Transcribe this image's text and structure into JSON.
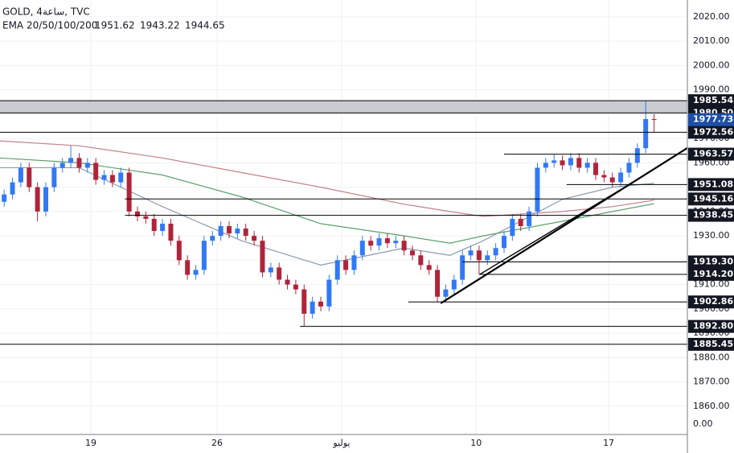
{
  "chart_data": {
    "type": "candlestick",
    "title": "GOLD, 4ساعة, TVC",
    "indicator_label": "EMA 20/50/100/200",
    "xlim": [
      0,
      165
    ],
    "ylim": [
      1848.4,
      2026.9
    ],
    "grid": true,
    "up_color": "#3179f5",
    "down_color": "#b0243a",
    "xticks": [
      {
        "value": 21.8,
        "label": "19"
      },
      {
        "value": 52.1,
        "label": "26"
      },
      {
        "value": 82,
        "label": "يوليو"
      },
      {
        "value": 114.3,
        "label": "10"
      },
      {
        "value": 146.1,
        "label": "17"
      }
    ],
    "yticks": [
      {
        "value": 2020,
        "label": "2020.00"
      },
      {
        "value": 2010,
        "label": "2010.00"
      },
      {
        "value": 2000,
        "label": "2000.00"
      },
      {
        "value": 1990,
        "label": "1990.00"
      },
      {
        "value": 1980,
        "label": "1980.00"
      },
      {
        "value": 1970,
        "label": "1970.00"
      },
      {
        "value": 1960,
        "label": "1960.00"
      },
      {
        "value": 1950,
        "label": "1950.00"
      },
      {
        "value": 1940,
        "label": "1940.00"
      },
      {
        "value": 1930,
        "label": "1930.00"
      },
      {
        "value": 1920,
        "label": "1920.00"
      },
      {
        "value": 1910,
        "label": "1910.00"
      },
      {
        "value": 1900,
        "label": "1900.00"
      },
      {
        "value": 1890,
        "label": "1890.00"
      },
      {
        "value": 1880,
        "label": "1880.00"
      },
      {
        "value": 1870,
        "label": "1870.00"
      },
      {
        "value": 1860,
        "label": "1860.00"
      }
    ],
    "bottom_label": "0.00",
    "x": [
      1,
      3,
      5,
      7,
      9,
      11,
      13,
      15,
      17,
      19,
      21,
      23,
      25,
      27,
      29,
      31,
      33,
      35,
      37,
      39,
      41,
      43,
      45,
      47,
      49,
      51,
      53,
      55,
      57,
      59,
      61,
      63,
      65,
      67,
      69,
      71,
      73,
      75,
      77,
      79,
      81,
      83,
      85,
      87,
      89,
      91,
      93,
      95,
      97,
      99,
      101,
      103,
      105,
      107,
      109,
      111,
      113,
      115,
      117,
      119,
      121,
      123,
      125,
      127,
      129,
      131,
      133,
      135,
      137,
      139,
      141,
      143,
      145,
      147,
      149,
      151,
      153,
      155,
      157
    ],
    "open": [
      1944,
      1947,
      1952,
      1958,
      1950,
      1940,
      1950,
      1958,
      1960,
      1962,
      1958,
      1960,
      1953,
      1955,
      1952,
      1956,
      1940,
      1938,
      1937,
      1932,
      1935,
      1928,
      1920,
      1914,
      1916,
      1928,
      1930,
      1934,
      1931,
      1933,
      1930,
      1928,
      1915,
      1917,
      1912,
      1910,
      1908,
      1898,
      1903,
      1901,
      1912,
      1920,
      1916,
      1922,
      1928,
      1926,
      1929,
      1927,
      1928,
      1924,
      1922,
      1918,
      1916,
      1905,
      1908,
      1912,
      1922,
      1924,
      1920,
      1922,
      1925,
      1930,
      1937,
      1934,
      1940,
      1958,
      1960,
      1961,
      1959,
      1962,
      1958,
      1960,
      1955,
      1954,
      1952,
      1956,
      1960,
      1966,
      1978
    ],
    "high": [
      1949,
      1954,
      1960,
      1960,
      1952,
      1952,
      1960,
      1962,
      1967,
      1964,
      1962,
      1962,
      1957,
      1957,
      1958,
      1958,
      1942,
      1940,
      1939,
      1937,
      1937,
      1930,
      1922,
      1918,
      1930,
      1932,
      1936,
      1936,
      1935,
      1935,
      1932,
      1930,
      1919,
      1919,
      1914,
      1912,
      1910,
      1905,
      1905,
      1914,
      1922,
      1922,
      1924,
      1930,
      1930,
      1931,
      1931,
      1930,
      1930,
      1926,
      1924,
      1920,
      1918,
      1910,
      1914,
      1924,
      1926,
      1926,
      1924,
      1927,
      1932,
      1939,
      1939,
      1942,
      1960,
      1962,
      1963.57,
      1963,
      1964,
      1964,
      1962,
      1962,
      1957,
      1956,
      1958,
      1962,
      1968,
      1985.54,
      1980
    ],
    "low": [
      1942,
      1945,
      1950,
      1948,
      1936,
      1938,
      1948,
      1956,
      1958,
      1956,
      1956,
      1951,
      1951,
      1950,
      1950,
      1938,
      1936,
      1935,
      1930,
      1930,
      1926,
      1918,
      1912,
      1912,
      1914,
      1926,
      1928,
      1929,
      1929,
      1928,
      1926,
      1913,
      1913,
      1910,
      1908,
      1906,
      1892.8,
      1896,
      1899,
      1899,
      1910,
      1914,
      1914,
      1920,
      1924,
      1924,
      1925,
      1925,
      1922,
      1920,
      1916,
      1914,
      1902.86,
      1903,
      1906,
      1910,
      1920,
      1914.2,
      1918,
      1920,
      1923,
      1928,
      1932,
      1932,
      1938,
      1956,
      1958,
      1957,
      1957,
      1956,
      1956,
      1953,
      1952,
      1950,
      1950,
      1954,
      1958,
      1964,
      1972.56
    ],
    "close": [
      1947,
      1952,
      1958,
      1950,
      1940,
      1950,
      1958,
      1960,
      1962,
      1958,
      1960,
      1953,
      1955,
      1952,
      1956,
      1940,
      1938,
      1937,
      1932,
      1935,
      1928,
      1920,
      1914,
      1916,
      1928,
      1930,
      1934,
      1931,
      1933,
      1930,
      1928,
      1915,
      1917,
      1912,
      1910,
      1908,
      1898,
      1903,
      1901,
      1912,
      1920,
      1916,
      1922,
      1928,
      1926,
      1929,
      1927,
      1928,
      1924,
      1922,
      1918,
      1916,
      1905,
      1908,
      1912,
      1922,
      1924,
      1920,
      1922,
      1925,
      1930,
      1937,
      1934,
      1940,
      1958,
      1960,
      1961,
      1959,
      1962,
      1958,
      1960,
      1955,
      1954,
      1952,
      1956,
      1960,
      1966,
      1978,
      1977.73
    ],
    "series": [
      {
        "name": "EMA 20",
        "color": "#8a9bb0",
        "x": [
          0,
          19,
          39,
          58,
          77,
          97,
          108,
          116,
          135,
          147,
          157
        ],
        "values": [
          1958,
          1958,
          1942,
          1928,
          1918,
          1925,
          1922,
          1928,
          1945,
          1950,
          1951.62
        ]
      },
      {
        "name": "EMA 50",
        "color": "#5f9e6b",
        "x": [
          0,
          19,
          39,
          58,
          77,
          97,
          108,
          116,
          135,
          147,
          157
        ],
        "values": [
          1962,
          1960,
          1955,
          1946,
          1935,
          1930,
          1927,
          1930,
          1936,
          1940,
          1943.22
        ]
      },
      {
        "name": "EMA 100",
        "color": "#c0828a",
        "x": [
          0,
          19,
          39,
          58,
          77,
          97,
          108,
          116,
          135,
          147,
          157
        ],
        "values": [
          1969,
          1967,
          1962,
          1956,
          1950,
          1943,
          1940,
          1938,
          1940,
          1942,
          1944.65
        ]
      }
    ],
    "legend_colors": [
      "#131722",
      "#2e7d32",
      "#b22833"
    ],
    "zone": [
      1985.54,
      {
        "value": 1980.5,
        "label": "1980.50"
      }
    ],
    "levels": [
      {
        "value": 1985.54,
        "from": 0
      },
      {
        "value": 1980.5,
        "label": "1980.50",
        "from": 0
      },
      {
        "value": 1972.56,
        "from": 0
      },
      {
        "value": 1963.57,
        "from": 121
      },
      {
        "value": 1951.08,
        "from": 136
      },
      {
        "value": 1945.16,
        "from": 30
      },
      {
        "value": 1938.45,
        "from": 30
      },
      {
        "value": 1919.3,
        "label": "1919.30",
        "from": 111
      },
      {
        "value": 1914.2,
        "label": "1914.20",
        "from": 115
      },
      {
        "value": 1902.86,
        "from": 98
      },
      {
        "value": 1892.8,
        "label": "1892.80",
        "from": 72
      },
      {
        "value": 1885.45,
        "from": 0
      }
    ],
    "last_price": 1977.73,
    "trendlines": [
      {
        "x": [
          105.8,
          165
        ],
        "y": [
          1902.3,
          1966.1
        ]
      },
      {
        "x": [
          115.2,
          148.6
        ],
        "y": [
          1914.2,
          1948.6
        ]
      }
    ]
  }
}
